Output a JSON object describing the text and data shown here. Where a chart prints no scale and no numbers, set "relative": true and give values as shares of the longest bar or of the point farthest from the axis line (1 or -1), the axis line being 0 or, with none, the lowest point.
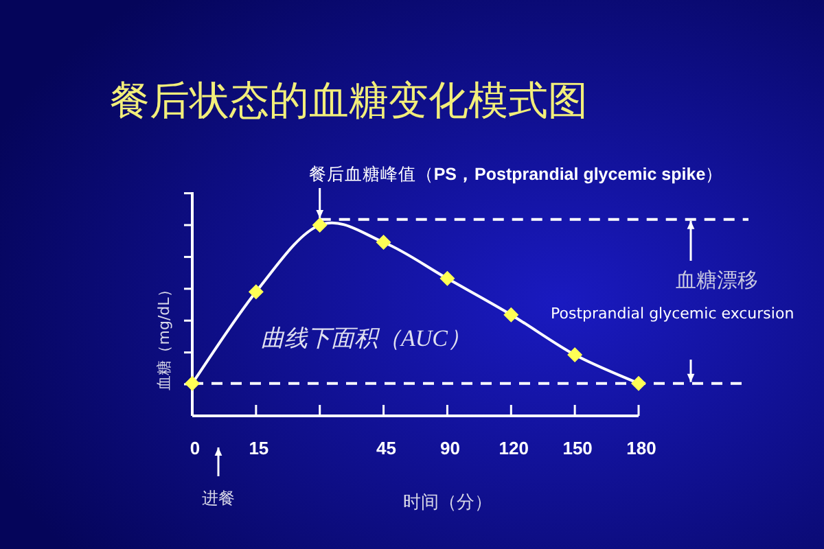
{
  "chart_data": {
    "type": "line",
    "title": "餐后状态的血糖变化模式图",
    "xlabel": "时间（分）",
    "ylabel": "血糖（mg/dL）",
    "categories": [
      "0",
      "15",
      null,
      "45",
      "90",
      "120",
      "150",
      "180"
    ],
    "values": [
      0.17,
      0.65,
      1,
      0.91,
      0.72,
      0.53,
      0.32,
      0.17
    ],
    "relative": true,
    "color": "#ffffff",
    "colors": [
      "#ffff55",
      "#ffff55",
      "#ffff55",
      "#ffff55",
      "#ffff55",
      "#ffff55",
      "#ffff55",
      "#ffff55"
    ],
    "marker": "diamond",
    "line_style": "solid",
    "tick_labels": "x",
    "ref_lines": [
      {
        "axis": "y",
        "value": 1.03,
        "color": "#ffffff",
        "line_style": "dashed"
      },
      {
        "axis": "y",
        "value": 0.17,
        "color": "#ffffff",
        "line_style": "dashed"
      }
    ],
    "annotations": [
      "餐后血糖峰值（**PS，Postprandial glycemic spike**）",
      "曲线下面积（AUC）",
      "血糖漂移",
      "Postprandial glycemic excursion",
      "进餐"
    ]
  }
}
